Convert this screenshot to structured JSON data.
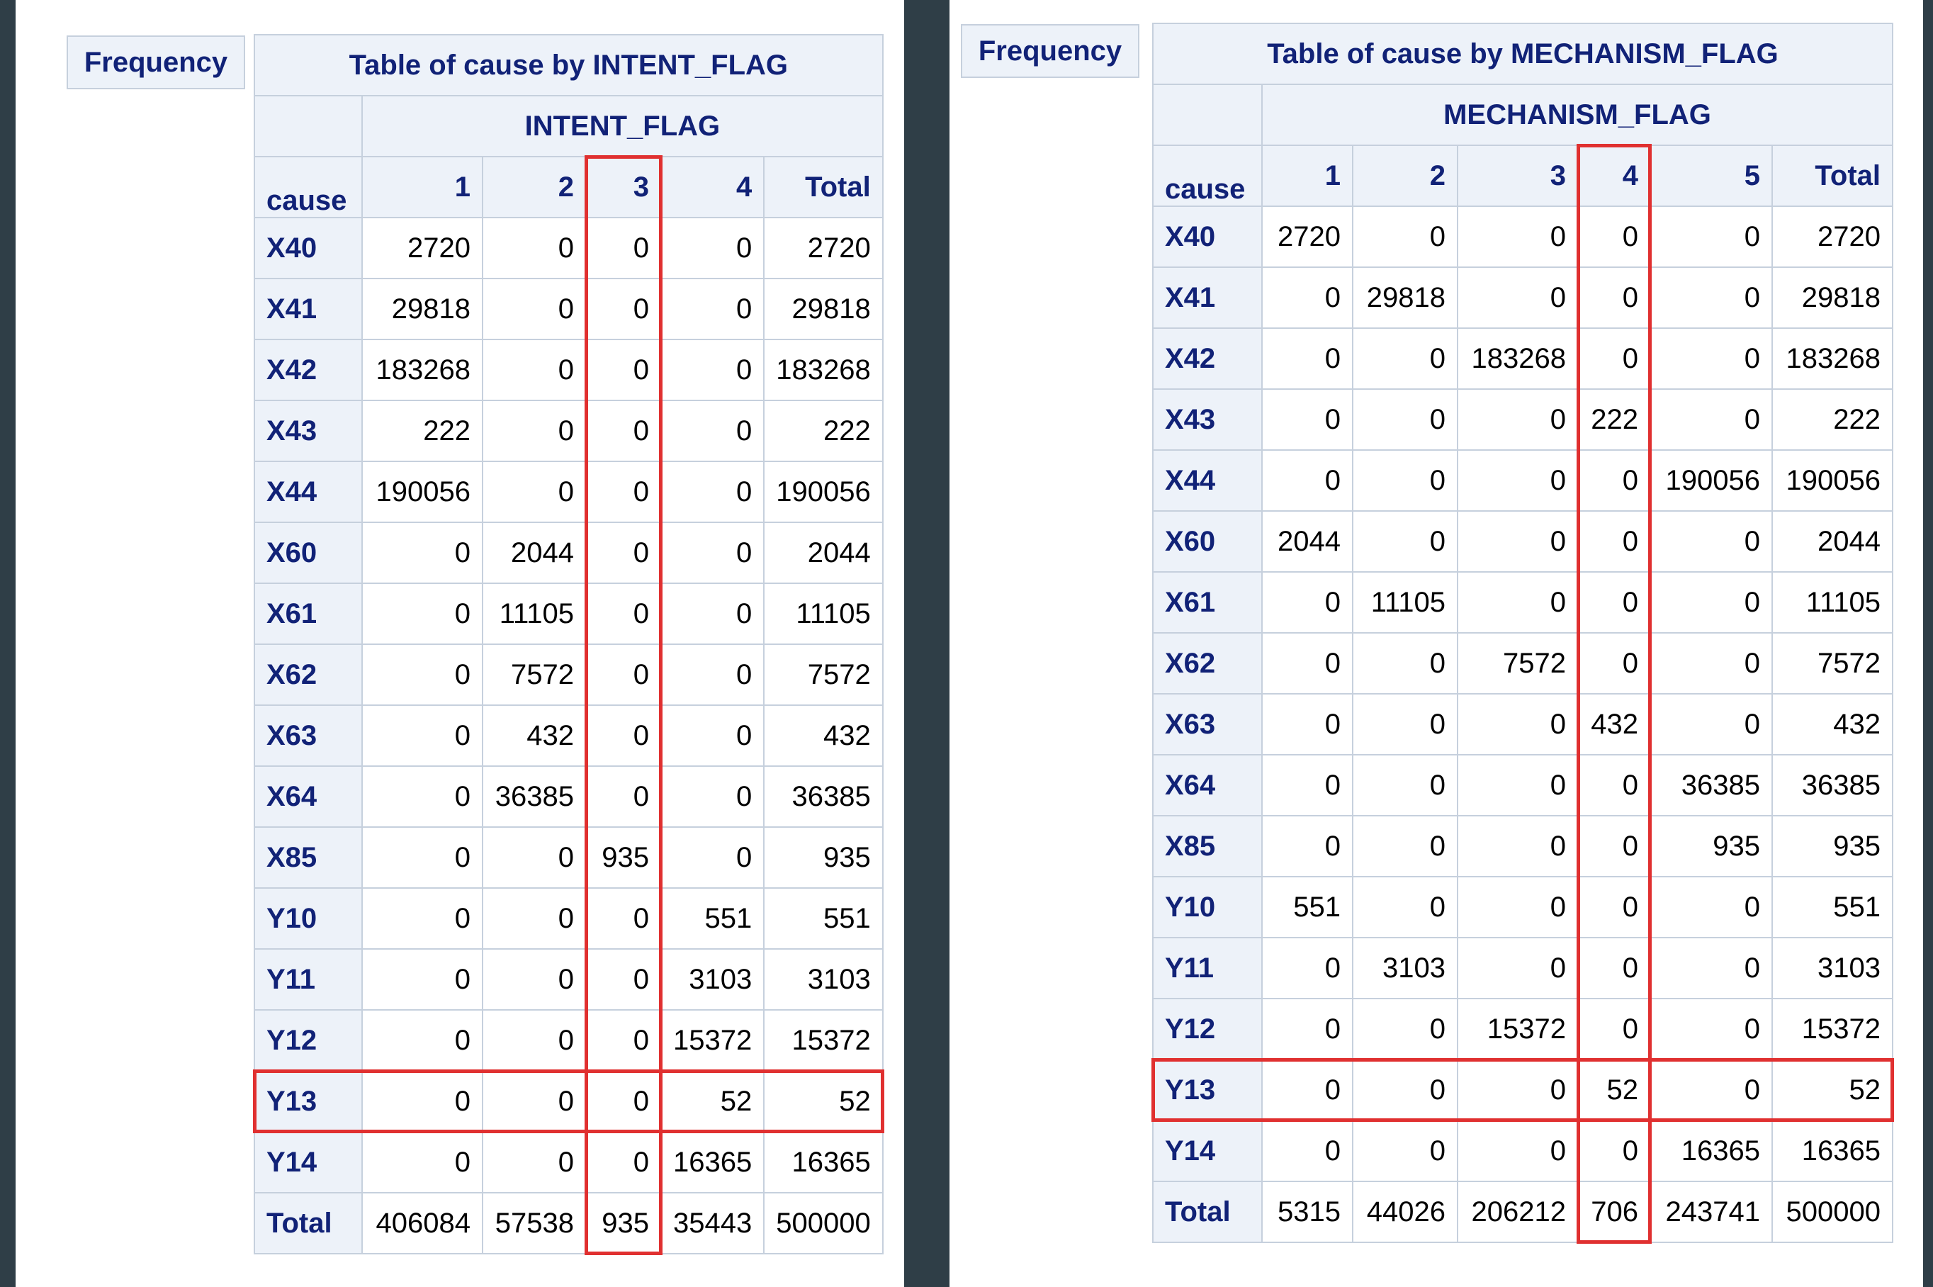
{
  "left": {
    "frequency_label": "Frequency",
    "title": "Table of cause by INTENT_FLAG",
    "column_variable": "INTENT_FLAG",
    "row_variable": "cause",
    "columns": [
      "1",
      "2",
      "3",
      "4",
      "Total"
    ],
    "rows": [
      {
        "cause": "X40",
        "values": [
          "2720",
          "0",
          "0",
          "0",
          "2720"
        ]
      },
      {
        "cause": "X41",
        "values": [
          "29818",
          "0",
          "0",
          "0",
          "29818"
        ]
      },
      {
        "cause": "X42",
        "values": [
          "183268",
          "0",
          "0",
          "0",
          "183268"
        ]
      },
      {
        "cause": "X43",
        "values": [
          "222",
          "0",
          "0",
          "0",
          "222"
        ]
      },
      {
        "cause": "X44",
        "values": [
          "190056",
          "0",
          "0",
          "0",
          "190056"
        ]
      },
      {
        "cause": "X60",
        "values": [
          "0",
          "2044",
          "0",
          "0",
          "2044"
        ]
      },
      {
        "cause": "X61",
        "values": [
          "0",
          "11105",
          "0",
          "0",
          "11105"
        ]
      },
      {
        "cause": "X62",
        "values": [
          "0",
          "7572",
          "0",
          "0",
          "7572"
        ]
      },
      {
        "cause": "X63",
        "values": [
          "0",
          "432",
          "0",
          "0",
          "432"
        ]
      },
      {
        "cause": "X64",
        "values": [
          "0",
          "36385",
          "0",
          "0",
          "36385"
        ]
      },
      {
        "cause": "X85",
        "values": [
          "0",
          "0",
          "935",
          "0",
          "935"
        ]
      },
      {
        "cause": "Y10",
        "values": [
          "0",
          "0",
          "0",
          "551",
          "551"
        ]
      },
      {
        "cause": "Y11",
        "values": [
          "0",
          "0",
          "0",
          "3103",
          "3103"
        ]
      },
      {
        "cause": "Y12",
        "values": [
          "0",
          "0",
          "0",
          "15372",
          "15372"
        ]
      },
      {
        "cause": "Y13",
        "values": [
          "0",
          "0",
          "0",
          "52",
          "52"
        ]
      },
      {
        "cause": "Y14",
        "values": [
          "0",
          "0",
          "0",
          "16365",
          "16365"
        ]
      },
      {
        "cause": "Total",
        "values": [
          "406084",
          "57538",
          "935",
          "35443",
          "500000"
        ]
      }
    ],
    "highlight_column": "3",
    "highlight_row": "Y13"
  },
  "right": {
    "frequency_label": "Frequency",
    "title": "Table of cause by MECHANISM_FLAG",
    "column_variable": "MECHANISM_FLAG",
    "row_variable": "cause",
    "columns": [
      "1",
      "2",
      "3",
      "4",
      "5",
      "Total"
    ],
    "rows": [
      {
        "cause": "X40",
        "values": [
          "2720",
          "0",
          "0",
          "0",
          "0",
          "2720"
        ]
      },
      {
        "cause": "X41",
        "values": [
          "0",
          "29818",
          "0",
          "0",
          "0",
          "29818"
        ]
      },
      {
        "cause": "X42",
        "values": [
          "0",
          "0",
          "183268",
          "0",
          "0",
          "183268"
        ]
      },
      {
        "cause": "X43",
        "values": [
          "0",
          "0",
          "0",
          "222",
          "0",
          "222"
        ]
      },
      {
        "cause": "X44",
        "values": [
          "0",
          "0",
          "0",
          "0",
          "190056",
          "190056"
        ]
      },
      {
        "cause": "X60",
        "values": [
          "2044",
          "0",
          "0",
          "0",
          "0",
          "2044"
        ]
      },
      {
        "cause": "X61",
        "values": [
          "0",
          "11105",
          "0",
          "0",
          "0",
          "11105"
        ]
      },
      {
        "cause": "X62",
        "values": [
          "0",
          "0",
          "7572",
          "0",
          "0",
          "7572"
        ]
      },
      {
        "cause": "X63",
        "values": [
          "0",
          "0",
          "0",
          "432",
          "0",
          "432"
        ]
      },
      {
        "cause": "X64",
        "values": [
          "0",
          "0",
          "0",
          "0",
          "36385",
          "36385"
        ]
      },
      {
        "cause": "X85",
        "values": [
          "0",
          "0",
          "0",
          "0",
          "935",
          "935"
        ]
      },
      {
        "cause": "Y10",
        "values": [
          "551",
          "0",
          "0",
          "0",
          "0",
          "551"
        ]
      },
      {
        "cause": "Y11",
        "values": [
          "0",
          "3103",
          "0",
          "0",
          "0",
          "3103"
        ]
      },
      {
        "cause": "Y12",
        "values": [
          "0",
          "0",
          "15372",
          "0",
          "0",
          "15372"
        ]
      },
      {
        "cause": "Y13",
        "values": [
          "0",
          "0",
          "0",
          "52",
          "0",
          "52"
        ]
      },
      {
        "cause": "Y14",
        "values": [
          "0",
          "0",
          "0",
          "0",
          "16365",
          "16365"
        ]
      },
      {
        "cause": "Total",
        "values": [
          "5315",
          "44026",
          "206212",
          "706",
          "243741",
          "500000"
        ]
      }
    ],
    "highlight_column": "4",
    "highlight_row": "Y13"
  },
  "colors": {
    "background": "#2f3e47",
    "header_fill": "#edf2f9",
    "header_text": "#112277",
    "border": "#c6d0dd",
    "highlight": "#e03030"
  }
}
